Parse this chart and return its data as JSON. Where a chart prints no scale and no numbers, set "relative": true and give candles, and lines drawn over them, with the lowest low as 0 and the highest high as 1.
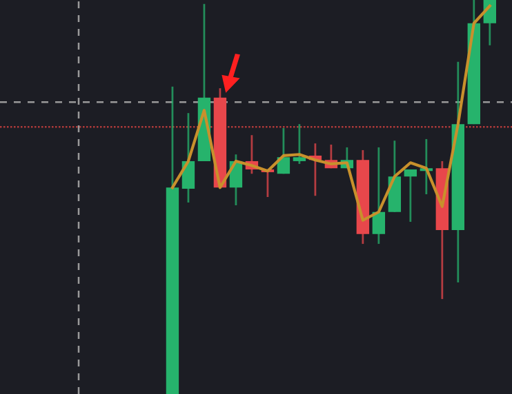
{
  "chart_data": {
    "type": "candlestick",
    "relative": true,
    "categories": [
      null,
      null,
      null,
      null,
      null,
      null,
      null,
      null,
      null,
      null,
      null,
      null,
      null,
      null,
      null,
      null,
      null,
      null,
      null,
      null,
      null
    ],
    "ohlc": [
      [
        0,
        0.78,
        0,
        0.524
      ],
      [
        0.521,
        0.713,
        0.486,
        0.591
      ],
      [
        0.591,
        0.99,
        0.591,
        0.752
      ],
      [
        0.752,
        0.776,
        0.524,
        0.524
      ],
      [
        0.524,
        0.608,
        0.479,
        0.591
      ],
      [
        0.591,
        0.657,
        0.559,
        0.57
      ],
      [
        0.57,
        0.57,
        0.5,
        0.563
      ],
      [
        0.559,
        0.675,
        0.559,
        0.601
      ],
      [
        0.591,
        0.685,
        0.584,
        0.601
      ],
      [
        0.605,
        0.636,
        0.503,
        0.594
      ],
      [
        0.594,
        0.633,
        0.573,
        0.573
      ],
      [
        0.573,
        0.626,
        0.573,
        0.594
      ],
      [
        0.594,
        0.619,
        0.381,
        0.406
      ],
      [
        0.406,
        0.626,
        0.381,
        0.462
      ],
      [
        0.462,
        0.643,
        0.462,
        0.552
      ],
      [
        0.552,
        0.57,
        0.437,
        0.57
      ],
      [
        0.566,
        0.647,
        0.507,
        0.573
      ],
      [
        0.573,
        0.591,
        0.241,
        0.416
      ],
      [
        0.416,
        0.843,
        0.283,
        0.685
      ],
      [
        0.685,
        1,
        0.685,
        0.941
      ],
      [
        0.941,
        1,
        0.885,
        1
      ]
    ],
    "colors": [
      "#26b36c",
      "#26b36c",
      "#26b36c",
      "#e8474b",
      "#26b36c",
      "#e8474b",
      "#e8474b",
      "#26b36c",
      "#26b36c",
      "#e8474b",
      "#e8474b",
      "#26b36c",
      "#e8474b",
      "#26b36c",
      "#26b36c",
      "#26b36c",
      "#26b36c",
      "#e8474b",
      "#26b36c",
      "#26b36c",
      "#26b36c"
    ],
    "series": [
      {
        "type": "line",
        "color": "#c8902c",
        "values": [
          0.524,
          0.591,
          0.72,
          0.524,
          0.591,
          0.58,
          0.566,
          0.605,
          0.608,
          0.594,
          0.584,
          0.587,
          0.441,
          0.462,
          0.552,
          0.587,
          0.573,
          0.476,
          0.685,
          0.941,
          0.985
        ]
      }
    ],
    "ref_lines": [
      {
        "axis": "y",
        "value": 0.678,
        "color": "#b03a3a",
        "line_style": "dotted"
      },
      {
        "axis": "y",
        "value": 0.741,
        "color": "#9a9a9a",
        "line_style": "dashed"
      }
    ]
  }
}
